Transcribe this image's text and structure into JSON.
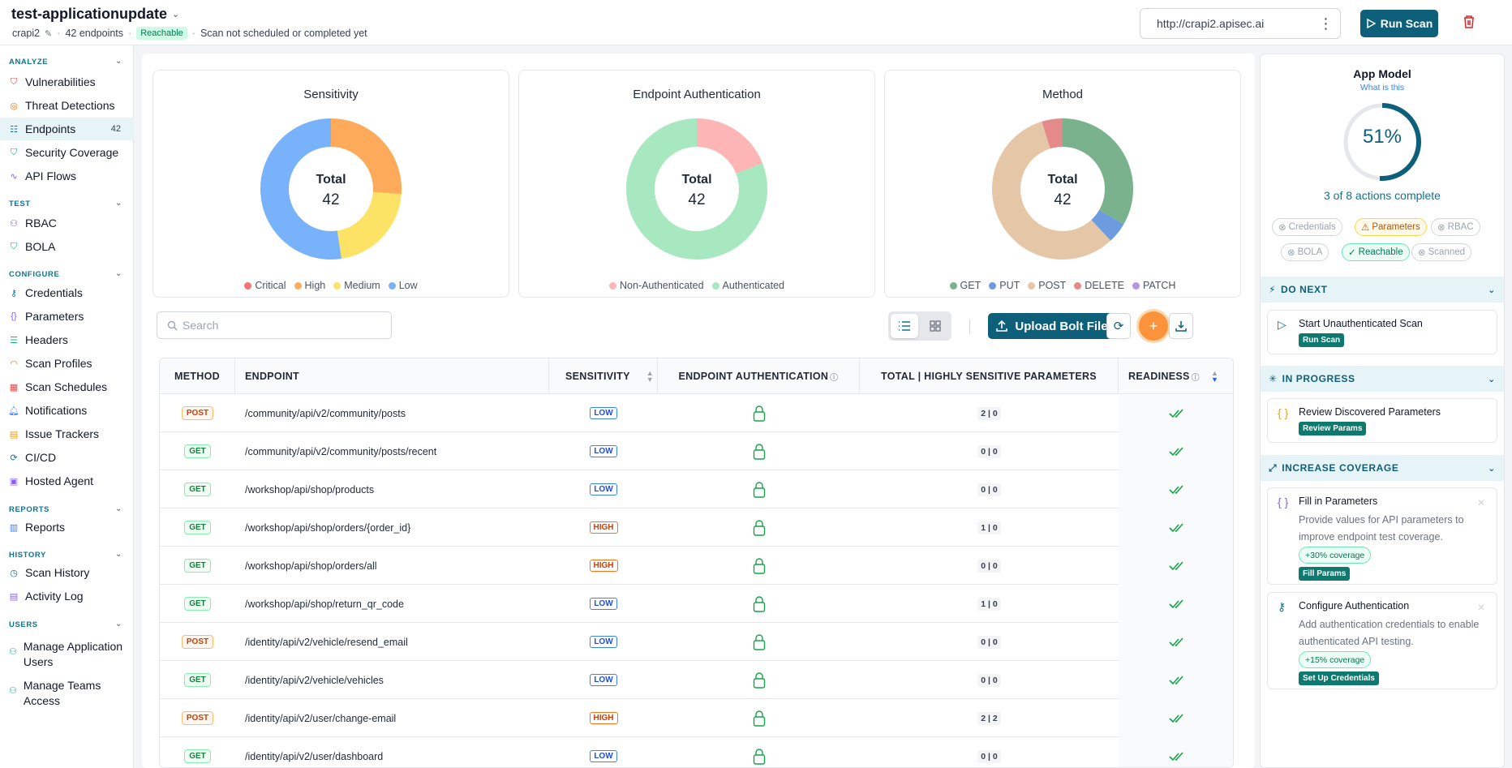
{
  "header": {
    "app_name": "test-applicationupdate",
    "env": "crapi2",
    "endpoints": "42 endpoints",
    "reach_badge": "Reachable",
    "scan_status": "Scan not scheduled or completed yet",
    "url": "http://crapi2.apisec.ai",
    "run_scan": "Run Scan"
  },
  "sidebar": {
    "analyze": "ANALYZE",
    "test": "TEST",
    "configure": "CONFIGURE",
    "reports_h": "REPORTS",
    "history_h": "HISTORY",
    "users_h": "USERS",
    "vulnerabilities": "Vulnerabilities",
    "threat": "Threat Detections",
    "endpoints": "Endpoints",
    "endpoints_count": "42",
    "security": "Security Coverage",
    "flows": "API Flows",
    "rbac": "RBAC",
    "bola": "BOLA",
    "credentials": "Credentials",
    "parameters": "Parameters",
    "headers": "Headers",
    "scan_profiles": "Scan Profiles",
    "scan_schedules": "Scan Schedules",
    "notifications": "Notifications",
    "issue_trackers": "Issue Trackers",
    "cicd": "CI/CD",
    "hosted_agent": "Hosted Agent",
    "reports": "Reports",
    "scan_history": "Scan History",
    "activity_log": "Activity Log",
    "manage_users": "Manage Application Users",
    "manage_teams": "Manage Teams Access"
  },
  "charts": {
    "total_label": "Total",
    "total_value": "42",
    "sensitivity": {
      "title": "Sensitivity",
      "legend": [
        "Critical",
        "High",
        "Medium",
        "Low"
      ],
      "colors": [
        "#f87171",
        "#fdab5b",
        "#fde365",
        "#78b2fb"
      ]
    },
    "auth": {
      "title": "Endpoint Authentication",
      "legend": [
        "Non-Authenticated",
        "Authenticated"
      ],
      "colors": [
        "#fdb5b5",
        "#a7e8c1"
      ]
    },
    "method": {
      "title": "Method",
      "legend": [
        "GET",
        "PUT",
        "POST",
        "DELETE",
        "PATCH"
      ],
      "colors": [
        "#79b28c",
        "#6c9be0",
        "#e5c7a7",
        "#e58a8a",
        "#b497e0"
      ]
    }
  },
  "chart_data": [
    {
      "type": "pie",
      "title": "Sensitivity",
      "labels": [
        "Critical",
        "High",
        "Medium",
        "Low"
      ],
      "values": [
        0,
        11,
        9,
        22
      ]
    },
    {
      "type": "pie",
      "title": "Endpoint Authentication",
      "labels": [
        "Non-Authenticated",
        "Authenticated"
      ],
      "values": [
        8,
        34
      ]
    },
    {
      "type": "pie",
      "title": "Method",
      "labels": [
        "GET",
        "PUT",
        "POST",
        "DELETE",
        "PATCH"
      ],
      "values": [
        14,
        2,
        24,
        2,
        0
      ]
    }
  ],
  "toolbar": {
    "search_placeholder": "Search",
    "upload": "Upload Bolt File"
  },
  "table": {
    "headers": {
      "method": "METHOD",
      "endpoint": "ENDPOINT",
      "sensitivity": "SENSITIVITY",
      "auth": "ENDPOINT AUTHENTICATION",
      "params": "TOTAL | HIGHLY SENSITIVE PARAMETERS",
      "readiness": "READINESS"
    },
    "rows": [
      {
        "method": "POST",
        "endpoint": "/community/api/v2/community/posts",
        "sensitivity": "LOW",
        "params": "2 | 0"
      },
      {
        "method": "GET",
        "endpoint": "/community/api/v2/community/posts/recent",
        "sensitivity": "LOW",
        "params": "0 | 0"
      },
      {
        "method": "GET",
        "endpoint": "/workshop/api/shop/products",
        "sensitivity": "LOW",
        "params": "0 | 0"
      },
      {
        "method": "GET",
        "endpoint": "/workshop/api/shop/orders/{order_id}",
        "sensitivity": "HIGH",
        "params": "1 | 0"
      },
      {
        "method": "GET",
        "endpoint": "/workshop/api/shop/orders/all",
        "sensitivity": "HIGH",
        "params": "0 | 0"
      },
      {
        "method": "GET",
        "endpoint": "/workshop/api/shop/return_qr_code",
        "sensitivity": "LOW",
        "params": "1 | 0"
      },
      {
        "method": "POST",
        "endpoint": "/identity/api/v2/vehicle/resend_email",
        "sensitivity": "LOW",
        "params": "0 | 0"
      },
      {
        "method": "GET",
        "endpoint": "/identity/api/v2/vehicle/vehicles",
        "sensitivity": "LOW",
        "params": "0 | 0"
      },
      {
        "method": "POST",
        "endpoint": "/identity/api/v2/user/change-email",
        "sensitivity": "HIGH",
        "params": "2 | 2"
      },
      {
        "method": "GET",
        "endpoint": "/identity/api/v2/user/dashboard",
        "sensitivity": "LOW",
        "params": "0 | 0"
      }
    ]
  },
  "panel": {
    "title": "App Model",
    "what": "What is this",
    "percent": "51%",
    "progress": 0.51,
    "actions": "3 of 8 actions complete",
    "chips": {
      "credentials": "Credentials",
      "parameters": "Parameters",
      "rbac": "RBAC",
      "bola": "BOLA",
      "reachable": "Reachable",
      "scanned": "Scanned"
    },
    "do_next": "DO NEXT",
    "in_progress": "IN PROGRESS",
    "increase": "INCREASE COVERAGE",
    "start_scan": "Start Unauthenticated Scan",
    "run_scan": "Run Scan",
    "review": "Review Discovered Parameters",
    "review_btn": "Review Params",
    "fill": "Fill in Parameters",
    "fill_desc": "Provide values for API parameters to improve endpoint test coverage.",
    "fill_cov": "+30% coverage",
    "fill_btn": "Fill Params",
    "auth": "Configure Authentication",
    "auth_desc": "Add authentication credentials to enable authenticated API testing.",
    "auth_cov": "+15% coverage",
    "auth_btn": "Set Up Credentials"
  }
}
